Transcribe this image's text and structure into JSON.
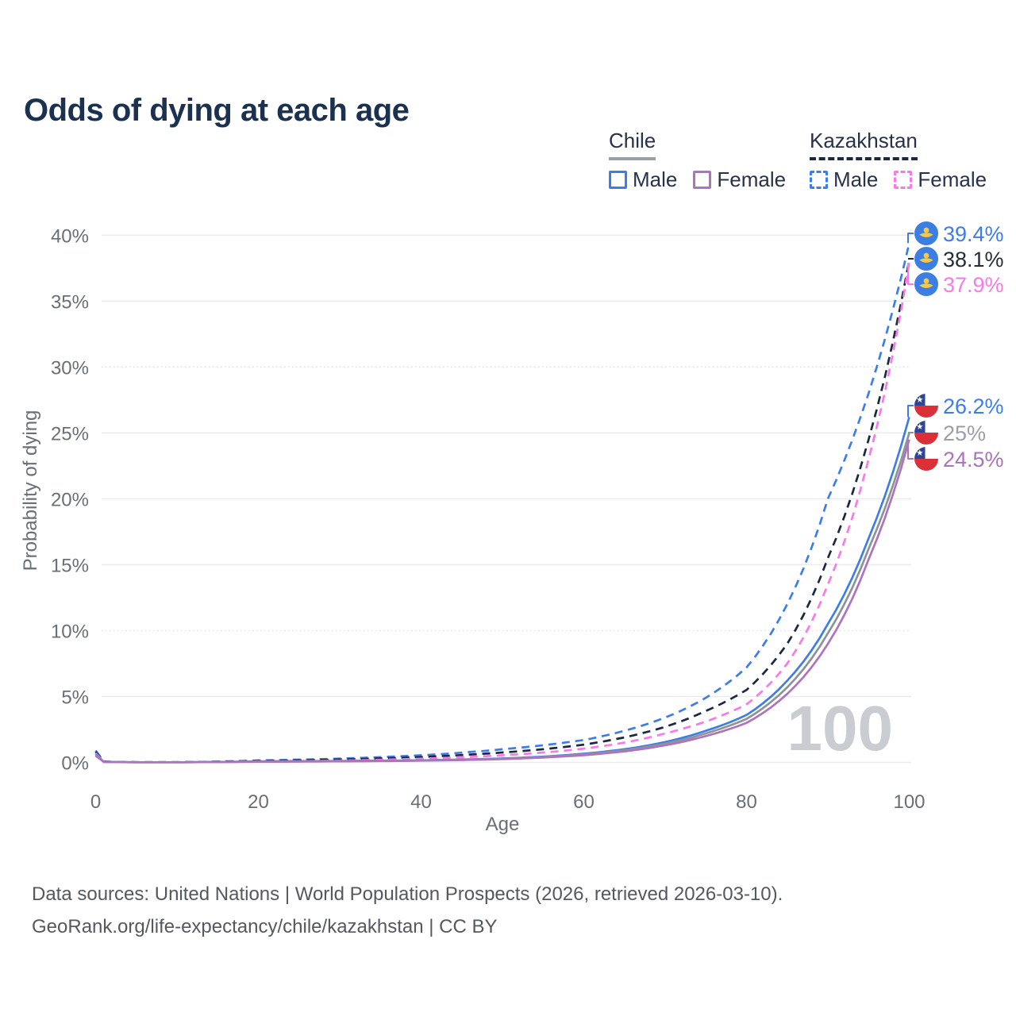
{
  "title": "Odds of dying at each age",
  "legend": {
    "groups": [
      {
        "label": "Chile",
        "line_style": "solid",
        "underline_color": "#9aa0a6",
        "items": [
          {
            "label": "Male",
            "color": "#3d7de9",
            "style": "solid"
          },
          {
            "label": "Female",
            "color": "#ad74bc",
            "style": "solid"
          }
        ]
      },
      {
        "label": "Kazakhstan",
        "line_style": "dashed",
        "underline_color": "#1b2940",
        "items": [
          {
            "label": "Male",
            "color": "#3d7de9",
            "style": "dashed"
          },
          {
            "label": "Female",
            "color": "#f879e7",
            "style": "dashed"
          }
        ]
      }
    ]
  },
  "colors": {
    "accent_blue": "#3d7de9",
    "navy": "#1b2940",
    "pink": "#f879e7",
    "gray": "#8f9398",
    "purple": "#ad74bc",
    "grid": "#ececec",
    "grid_dotted": "#e2e2e2",
    "tick_text": "#696f76",
    "watermark": "#c9ccd1",
    "kz_flag_blue": "#3c7ee2",
    "kz_flag_yellow": "#f3ca45",
    "cl_flag_blue": "#2e4697",
    "cl_flag_red": "#dc3038",
    "cl_flag_white": "#ffffff"
  },
  "chart_data": {
    "type": "line",
    "title": "Odds of dying at each age",
    "xlabel": "Age",
    "ylabel": "Probability of dying",
    "xlim": [
      0,
      100
    ],
    "ylim": [
      0,
      40
    ],
    "grid": "horizontal",
    "legend_position": "top-right",
    "hover_label": "100",
    "x_ticks": [
      {
        "value": 0,
        "label": "0"
      },
      {
        "value": 20,
        "label": "20"
      },
      {
        "value": 40,
        "label": "40"
      },
      {
        "value": 60,
        "label": "60"
      },
      {
        "value": 80,
        "label": "80"
      },
      {
        "value": 100,
        "label": "100"
      }
    ],
    "y_ticks": [
      {
        "value": 0,
        "label": "0%",
        "style": "solid"
      },
      {
        "value": 5,
        "label": "5%",
        "style": "solid"
      },
      {
        "value": 10,
        "label": "10%",
        "style": "dotted"
      },
      {
        "value": 15,
        "label": "15%",
        "style": "solid"
      },
      {
        "value": 20,
        "label": "20%",
        "style": "solid"
      },
      {
        "value": 25,
        "label": "25%",
        "style": "solid"
      },
      {
        "value": 30,
        "label": "30%",
        "style": "dotted"
      },
      {
        "value": 35,
        "label": "35%",
        "style": "solid"
      },
      {
        "value": 40,
        "label": "40%",
        "style": "solid"
      }
    ],
    "x": [
      0,
      1,
      5,
      10,
      15,
      20,
      25,
      30,
      35,
      40,
      45,
      50,
      55,
      60,
      65,
      70,
      75,
      80,
      85,
      90,
      95,
      100
    ],
    "series": [
      {
        "name": "Kazakhstan Male",
        "country": "Kazakhstan",
        "sex": "male",
        "dash": true,
        "color": "#3d7de9",
        "flag": "kz",
        "end_label": "39.4%",
        "label_color": "#3d7de9",
        "values": [
          0.9,
          0.07,
          0.02,
          0.02,
          0.07,
          0.15,
          0.21,
          0.29,
          0.4,
          0.54,
          0.74,
          1.0,
          1.3,
          1.7,
          2.4,
          3.4,
          4.9,
          7.2,
          12.0,
          20.0,
          28.0,
          39.4
        ]
      },
      {
        "name": "Kazakhstan Both sexes",
        "country": "Kazakhstan",
        "sex": "total",
        "dash": true,
        "color": "#1b2940",
        "flag": "kz",
        "end_label": "38.1%",
        "label_color": "#262d37",
        "values": [
          0.8,
          0.06,
          0.018,
          0.018,
          0.05,
          0.11,
          0.16,
          0.22,
          0.3,
          0.41,
          0.56,
          0.75,
          1.0,
          1.35,
          1.9,
          2.7,
          3.9,
          5.5,
          9.0,
          15.5,
          24.5,
          38.1
        ]
      },
      {
        "name": "Kazakhstan Female",
        "country": "Kazakhstan",
        "sex": "female",
        "dash": true,
        "color": "#f879e7",
        "flag": "kz",
        "end_label": "37.9%",
        "label_color": "#f879e7",
        "values": [
          0.7,
          0.05,
          0.015,
          0.015,
          0.04,
          0.07,
          0.1,
          0.14,
          0.2,
          0.28,
          0.39,
          0.54,
          0.75,
          1.05,
          1.5,
          2.2,
          3.1,
          4.4,
          7.5,
          13.5,
          23.0,
          37.9
        ]
      },
      {
        "name": "Chile Male",
        "country": "Chile",
        "sex": "male",
        "dash": false,
        "color": "#3d7de9",
        "flag": "cl",
        "end_label": "26.2%",
        "label_color": "#3d7de9",
        "values": [
          0.6,
          0.045,
          0.012,
          0.012,
          0.035,
          0.08,
          0.1,
          0.11,
          0.13,
          0.16,
          0.22,
          0.3,
          0.44,
          0.66,
          1.0,
          1.55,
          2.4,
          3.6,
          6.2,
          10.5,
          17.0,
          26.2
        ]
      },
      {
        "name": "Chile Both sexes",
        "country": "Chile",
        "sex": "total",
        "dash": false,
        "color": "#8f9398",
        "flag": "cl",
        "end_label": "25%",
        "label_color": "#9aa0a6",
        "values": [
          0.55,
          0.04,
          0.011,
          0.011,
          0.03,
          0.065,
          0.085,
          0.1,
          0.12,
          0.15,
          0.2,
          0.28,
          0.41,
          0.61,
          0.92,
          1.43,
          2.2,
          3.3,
          5.7,
          9.8,
          16.2,
          25.0
        ]
      },
      {
        "name": "Chile Female",
        "country": "Chile",
        "sex": "female",
        "dash": false,
        "color": "#ad74bc",
        "flag": "cl",
        "end_label": "24.5%",
        "label_color": "#a874b8",
        "values": [
          0.5,
          0.035,
          0.01,
          0.01,
          0.025,
          0.05,
          0.06,
          0.08,
          0.1,
          0.13,
          0.18,
          0.25,
          0.37,
          0.55,
          0.84,
          1.3,
          2.0,
          3.0,
          5.2,
          9.0,
          15.4,
          24.5
        ]
      }
    ]
  },
  "footer": {
    "line1": "Data sources: United Nations | World Population Prospects (2026, retrieved 2026-03-10).",
    "line2": "GeoRank.org/life-expectancy/chile/kazakhstan | CC BY"
  }
}
